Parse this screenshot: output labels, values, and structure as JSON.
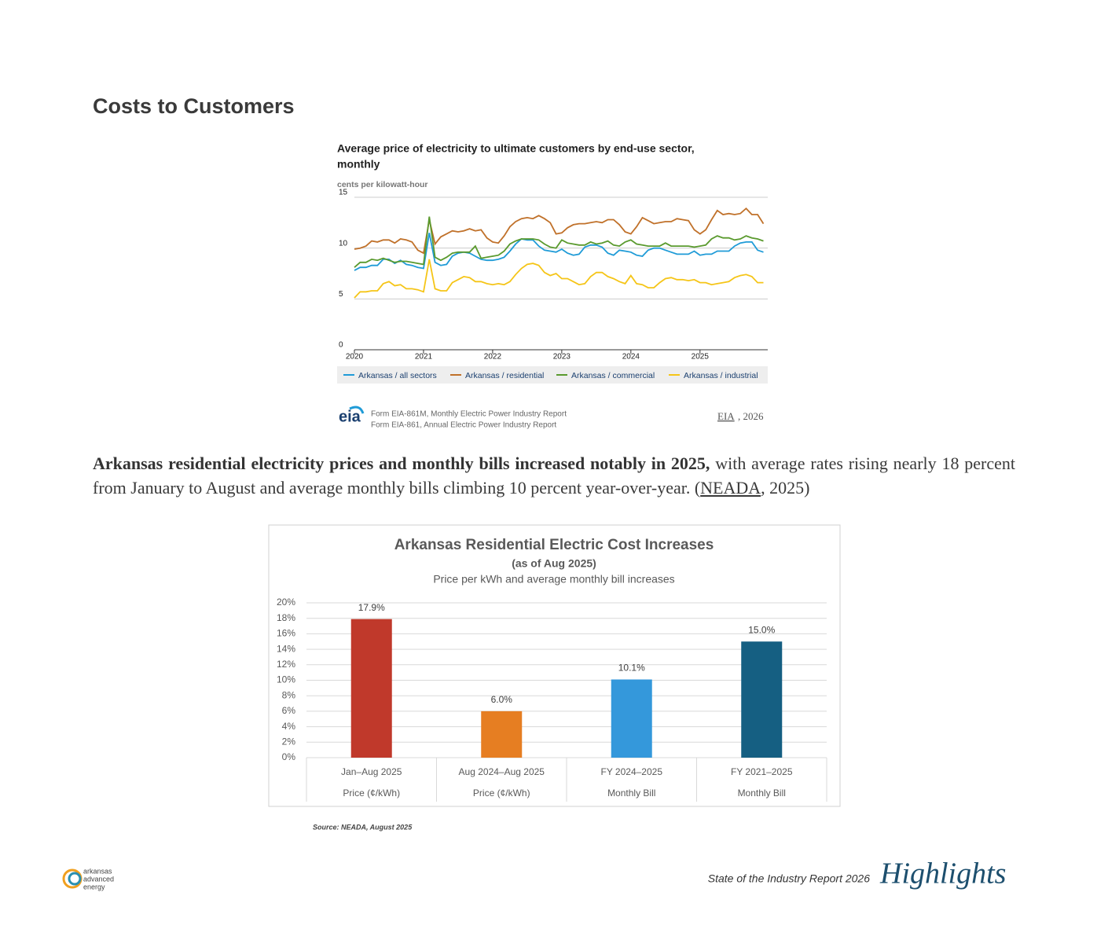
{
  "header": {
    "title": "Costs to Customers"
  },
  "chart_data": [
    {
      "type": "line",
      "title": "Average price of electricity to ultimate customers by end-use sector,",
      "title_line2": "monthly",
      "y_label": "cents per kilowatt-hour",
      "x": [
        2020,
        2020.083,
        2020.167,
        2020.25,
        2020.333,
        2020.417,
        2020.5,
        2020.583,
        2020.667,
        2020.75,
        2020.833,
        2020.917,
        2021,
        2021.083,
        2021.167,
        2021.25,
        2021.333,
        2021.417,
        2021.5,
        2021.583,
        2021.667,
        2021.75,
        2021.833,
        2021.917,
        2022,
        2022.083,
        2022.167,
        2022.25,
        2022.333,
        2022.417,
        2022.5,
        2022.583,
        2022.667,
        2022.75,
        2022.833,
        2022.917,
        2023,
        2023.083,
        2023.167,
        2023.25,
        2023.333,
        2023.417,
        2023.5,
        2023.583,
        2023.667,
        2023.75,
        2023.833,
        2023.917,
        2024,
        2024.083,
        2024.167,
        2024.25,
        2024.333,
        2024.417,
        2024.5,
        2024.583,
        2024.667,
        2024.75,
        2024.833,
        2024.917,
        2025,
        2025.083,
        2025.167,
        2025.25,
        2025.333,
        2025.417,
        2025.5,
        2025.583,
        2025.667,
        2025.75,
        2025.833,
        2025.917
      ],
      "series": [
        {
          "name": "Arkansas / all sectors",
          "color": "#1f9bd7",
          "values": [
            7.8,
            8.1,
            8.1,
            8.3,
            8.3,
            8.9,
            8.9,
            8.5,
            8.8,
            8.4,
            8.3,
            8.1,
            8.0,
            11.5,
            8.6,
            8.3,
            8.4,
            9.2,
            9.5,
            9.6,
            9.5,
            9.2,
            8.9,
            8.8,
            8.8,
            8.9,
            9.1,
            9.7,
            10.4,
            10.9,
            10.8,
            10.8,
            10.2,
            9.8,
            9.7,
            9.6,
            9.9,
            9.5,
            9.3,
            9.4,
            10.1,
            10.3,
            10.3,
            10.1,
            9.5,
            9.3,
            9.8,
            9.7,
            9.6,
            9.3,
            9.2,
            9.8,
            10.0,
            10.0,
            9.8,
            9.6,
            9.4,
            9.4,
            9.4,
            9.7,
            9.3,
            9.4,
            9.4,
            9.7,
            9.7,
            9.7,
            10.2,
            10.5,
            10.6,
            10.6,
            9.8,
            9.6
          ]
        },
        {
          "name": "Arkansas / residential",
          "color": "#c0712a",
          "values": [
            9.9,
            10.0,
            10.2,
            10.7,
            10.6,
            10.8,
            10.8,
            10.5,
            10.9,
            10.8,
            10.6,
            9.8,
            9.5,
            12.8,
            10.4,
            11.1,
            11.4,
            11.7,
            11.6,
            11.7,
            11.9,
            11.7,
            11.8,
            11.0,
            10.6,
            10.5,
            11.2,
            12.1,
            12.6,
            12.9,
            13.0,
            12.9,
            13.2,
            12.9,
            12.5,
            11.4,
            11.5,
            12.0,
            12.3,
            12.4,
            12.4,
            12.5,
            12.6,
            12.5,
            12.8,
            12.8,
            12.3,
            11.6,
            11.4,
            12.1,
            13.0,
            12.7,
            12.4,
            12.5,
            12.6,
            12.6,
            12.9,
            12.8,
            12.7,
            11.8,
            11.4,
            11.8,
            12.8,
            13.7,
            13.3,
            13.4,
            13.3,
            13.4,
            13.9,
            13.3,
            13.3,
            12.4
          ]
        },
        {
          "name": "Arkansas / commercial",
          "color": "#5a9a2e",
          "values": [
            8.1,
            8.6,
            8.6,
            8.9,
            8.8,
            9.0,
            8.8,
            8.6,
            8.7,
            8.7,
            8.6,
            8.5,
            8.4,
            13.1,
            9.1,
            8.8,
            9.1,
            9.5,
            9.6,
            9.6,
            9.6,
            10.2,
            9.0,
            9.1,
            9.2,
            9.3,
            9.7,
            10.4,
            10.7,
            10.9,
            10.9,
            10.9,
            10.8,
            10.4,
            10.1,
            10.0,
            10.8,
            10.5,
            10.4,
            10.3,
            10.3,
            10.6,
            10.4,
            10.5,
            10.7,
            10.3,
            10.2,
            10.6,
            10.8,
            10.4,
            10.3,
            10.2,
            10.2,
            10.2,
            10.5,
            10.2,
            10.2,
            10.2,
            10.2,
            10.1,
            10.2,
            10.3,
            10.9,
            11.2,
            11.0,
            11.0,
            10.8,
            10.9,
            11.2,
            11.0,
            10.9,
            10.7
          ]
        },
        {
          "name": "Arkansas / industrial",
          "color": "#f5c518",
          "values": [
            5.1,
            5.7,
            5.7,
            5.8,
            5.8,
            6.5,
            6.7,
            6.3,
            6.4,
            6.0,
            6.0,
            5.9,
            5.7,
            8.9,
            6.0,
            5.8,
            5.8,
            6.6,
            6.9,
            7.2,
            7.1,
            6.7,
            6.7,
            6.5,
            6.4,
            6.5,
            6.4,
            6.7,
            7.4,
            8.0,
            8.4,
            8.5,
            8.3,
            7.6,
            7.3,
            7.5,
            7.0,
            7.0,
            6.7,
            6.4,
            6.5,
            7.2,
            7.6,
            7.6,
            7.2,
            7.0,
            6.7,
            6.5,
            7.3,
            6.5,
            6.4,
            6.1,
            6.1,
            6.6,
            7.0,
            7.1,
            6.9,
            6.9,
            6.8,
            6.9,
            6.6,
            6.6,
            6.4,
            6.5,
            6.6,
            6.7,
            7.1,
            7.3,
            7.4,
            7.2,
            6.6,
            6.6
          ]
        }
      ],
      "xlim": [
        2020,
        2025.98
      ],
      "ylim": [
        0,
        15
      ],
      "xticks": [
        2020,
        2021,
        2022,
        2023,
        2024,
        2025
      ],
      "yticks": [
        0,
        5,
        10,
        15
      ],
      "grid": true,
      "logo": "eia",
      "source_lines": [
        "Form EIA-861M, Monthly Electric Power Industry Report",
        "Form EIA-861, Annual Electric Power Industry Report"
      ],
      "citation_link": "EIA",
      "citation_tail": ", 2026"
    },
    {
      "type": "bar",
      "title": "Arkansas Residential Electric Cost Increases",
      "subtitle": "(as of Aug 2025)",
      "description": "Price per kWh and average monthly bill increases",
      "categories": [
        "Jan–Aug 2025",
        "Aug 2024–Aug 2025",
        "FY 2024–2025",
        "FY 2021–2025"
      ],
      "category_metrics": [
        "Price (¢/kWh)",
        "Price (¢/kWh)",
        "Monthly Bill",
        "Monthly Bill"
      ],
      "values": [
        17.9,
        6.0,
        10.1,
        15.0
      ],
      "value_labels": [
        "17.9%",
        "6.0%",
        "10.1%",
        "15.0%"
      ],
      "colors": [
        "#c0392b",
        "#e67e22",
        "#3498db",
        "#155f82"
      ],
      "ylim": [
        0,
        20
      ],
      "yticks": [
        {
          "value": 0,
          "label": "0%"
        },
        {
          "value": 2,
          "label": "2%"
        },
        {
          "value": 4,
          "label": "4%"
        },
        {
          "value": 6,
          "label": "6%"
        },
        {
          "value": 8,
          "label": "8%"
        },
        {
          "value": 10,
          "label": "10%"
        },
        {
          "value": 12,
          "label": "12%"
        },
        {
          "value": 14,
          "label": "14%"
        },
        {
          "value": 16,
          "label": "16%"
        },
        {
          "value": 18,
          "label": "18%"
        },
        {
          "value": 20,
          "label": "20%"
        }
      ],
      "grid": true,
      "source": "Source: NEADA, August 2025"
    }
  ],
  "paragraph": {
    "bold": "Arkansas residential electricity prices and monthly bills increased notably in 2025,",
    "text": " with average rates rising nearly 18 percent from January to August and average monthly bills climbing 10 percent year-over-year. (",
    "link": "NEADA",
    "tail": ", 2025)"
  },
  "footer": {
    "logo_lines": [
      "arkansas",
      "advanced",
      "energy"
    ],
    "report": "State of the Industry Report 2026",
    "section": "Highlights"
  }
}
